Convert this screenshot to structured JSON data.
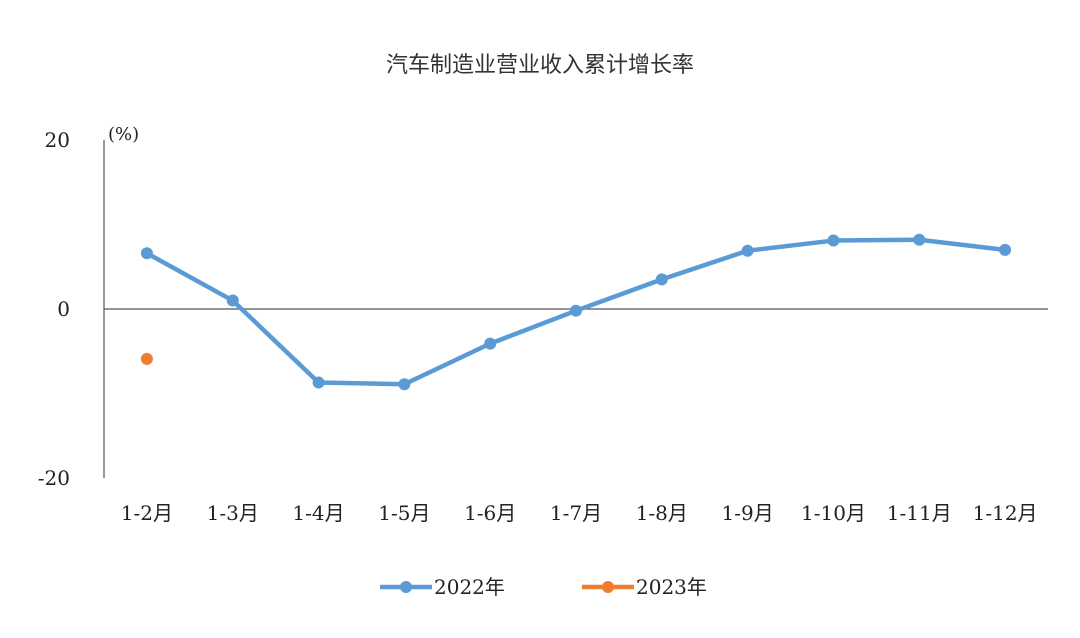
{
  "chart_data": {
    "type": "line",
    "title": "汽车制造业营业收入累计增长率",
    "unit_label": "(%)",
    "categories": [
      "1-2月",
      "1-3月",
      "1-4月",
      "1-5月",
      "1-6月",
      "1-7月",
      "1-8月",
      "1-9月",
      "1-10月",
      "1-11月",
      "1-12月"
    ],
    "ylim": [
      -20,
      20
    ],
    "yticks": [
      {
        "value": 20,
        "label": "20",
        "color": "#222222"
      },
      {
        "value": 0,
        "label": "0",
        "color": "#222222"
      },
      {
        "value": -20,
        "label": "-20",
        "color": "#d40000"
      }
    ],
    "series": [
      {
        "name": "2022年",
        "color": "#5b9bd5",
        "values": [
          6.6,
          1.0,
          -8.7,
          -8.9,
          -4.1,
          -0.2,
          3.5,
          6.9,
          8.1,
          8.2,
          7.0
        ]
      },
      {
        "name": "2023年",
        "color": "#ed7d31",
        "values": [
          -5.9,
          null,
          null,
          null,
          null,
          null,
          null,
          null,
          null,
          null,
          null
        ]
      }
    ],
    "legend_position": "bottom",
    "grid": false
  }
}
